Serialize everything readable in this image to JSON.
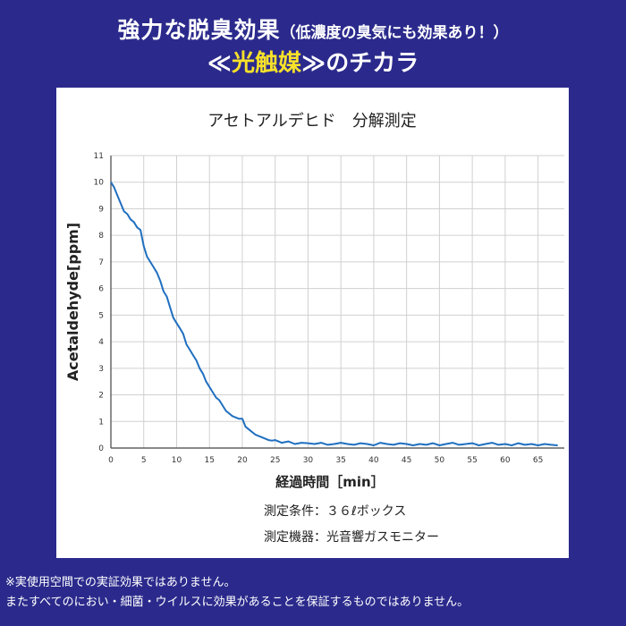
{
  "header": {
    "line1_main": "強力な脱臭効果",
    "line1_sub": "（低濃度の臭気にも効果あり！）",
    "line2_open": "≪",
    "line2_highlight": "光触媒",
    "line2_close": "≫",
    "line2_rest": "のチカラ"
  },
  "colors": {
    "background": "#2b2a8c",
    "highlight": "#f7e12a",
    "line": "#1f6fbf"
  },
  "notes": {
    "condition": "測定条件：３６ℓボックス",
    "device": "測定機器：光音響ガスモニター"
  },
  "footer": {
    "line1": "※実使用空間での実証効果ではありません。",
    "line2": "またすべてのにおい・細菌・ウイルスに効果があることを保証するものではありません。"
  },
  "chart_data": {
    "type": "line",
    "title": "アセトアルデヒド　分解測定",
    "xlabel": "経過時間［min］",
    "ylabel": "Acetaldehyde[ppm]",
    "xlim": [
      0,
      69
    ],
    "ylim": [
      0,
      11
    ],
    "xticks": [
      0,
      5,
      10,
      15,
      20,
      25,
      30,
      35,
      40,
      45,
      50,
      55,
      60,
      65
    ],
    "yticks": [
      0,
      1,
      2,
      3,
      4,
      5,
      6,
      7,
      8,
      9,
      10,
      11
    ],
    "grid": true,
    "series": [
      {
        "x": [
          0,
          0.5,
          1,
          1.5,
          2,
          2.5,
          3,
          3.5,
          4,
          4.5,
          5,
          5.5,
          6,
          6.5,
          7,
          7.5,
          8,
          8.5,
          9,
          9.5,
          10,
          10.5,
          11,
          11.5,
          12,
          12.5,
          13,
          13.5,
          14,
          14.5,
          15,
          15.5,
          16,
          16.5,
          17,
          17.5,
          18,
          18.5,
          19,
          19.5,
          20,
          20.5,
          21,
          21.5,
          22,
          22.5,
          23,
          23.5,
          24,
          24.5,
          25,
          26,
          27,
          28,
          29,
          30,
          31,
          32,
          33,
          34,
          35,
          36,
          37,
          38,
          39,
          40,
          41,
          42,
          43,
          44,
          45,
          46,
          47,
          48,
          49,
          50,
          51,
          52,
          53,
          54,
          55,
          56,
          57,
          58,
          59,
          60,
          61,
          62,
          63,
          64,
          65,
          66,
          67,
          68
        ],
        "y": [
          10.0,
          9.8,
          9.5,
          9.2,
          8.9,
          8.8,
          8.6,
          8.5,
          8.3,
          8.2,
          7.6,
          7.2,
          7.0,
          6.8,
          6.6,
          6.3,
          5.9,
          5.7,
          5.3,
          4.9,
          4.7,
          4.5,
          4.3,
          3.9,
          3.7,
          3.5,
          3.3,
          3.0,
          2.8,
          2.5,
          2.3,
          2.1,
          1.9,
          1.8,
          1.6,
          1.4,
          1.3,
          1.2,
          1.15,
          1.1,
          1.1,
          0.8,
          0.7,
          0.6,
          0.5,
          0.45,
          0.4,
          0.35,
          0.3,
          0.28,
          0.3,
          0.2,
          0.25,
          0.15,
          0.2,
          0.18,
          0.15,
          0.2,
          0.12,
          0.15,
          0.2,
          0.15,
          0.12,
          0.18,
          0.15,
          0.1,
          0.2,
          0.15,
          0.12,
          0.18,
          0.15,
          0.1,
          0.15,
          0.12,
          0.18,
          0.1,
          0.15,
          0.2,
          0.12,
          0.15,
          0.18,
          0.1,
          0.15,
          0.2,
          0.12,
          0.15,
          0.1,
          0.18,
          0.12,
          0.15,
          0.1,
          0.15,
          0.12,
          0.1
        ]
      }
    ]
  }
}
